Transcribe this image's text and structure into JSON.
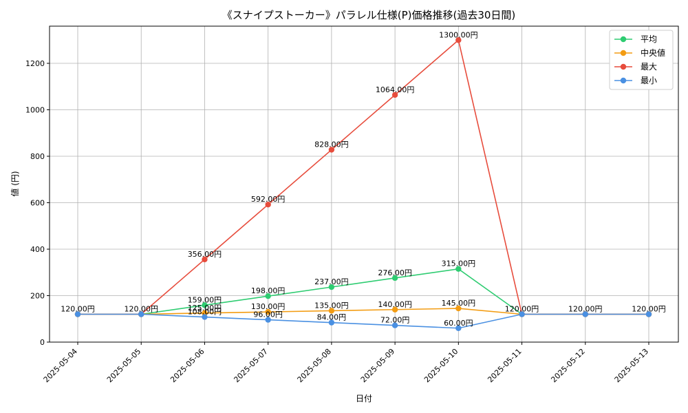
{
  "chart_data": {
    "type": "line",
    "title": "《スナイプストーカー》パラレル仕様(P)価格推移(過去30日間)",
    "xlabel": "日付",
    "ylabel": "値 (円)",
    "categories": [
      "2025-05-04",
      "2025-05-05",
      "2025-05-06",
      "2025-05-07",
      "2025-05-08",
      "2025-05-09",
      "2025-05-10",
      "2025-05-11",
      "2025-05-12",
      "2025-05-13"
    ],
    "ylim": [
      0,
      1360
    ],
    "yticks": [
      0,
      200,
      400,
      600,
      800,
      1000,
      1200
    ],
    "grid": true,
    "legend_position": "top-right",
    "series": [
      {
        "name": "平均",
        "color": "#2ecc71",
        "values": [
          120,
          120,
          159,
          198,
          237,
          276,
          315,
          120,
          120,
          120
        ]
      },
      {
        "name": "中央値",
        "color": "#f39c12",
        "values": [
          120,
          120,
          125,
          130,
          135,
          140,
          145,
          120,
          120,
          120
        ]
      },
      {
        "name": "最大",
        "color": "#e74c3c",
        "values": [
          120,
          120,
          356,
          592,
          828,
          1064,
          1300,
          120,
          120,
          120
        ]
      },
      {
        "name": "最小",
        "color": "#4a90e2",
        "values": [
          120,
          120,
          108,
          96,
          84,
          72,
          60,
          120,
          120,
          120
        ]
      }
    ],
    "data_labels": [
      {
        "series": 0,
        "index": 0,
        "text": "120.00円"
      },
      {
        "series": 0,
        "index": 1,
        "text": "120.00円"
      },
      {
        "series": 0,
        "index": 2,
        "text": "159.00円"
      },
      {
        "series": 0,
        "index": 3,
        "text": "198.00円"
      },
      {
        "series": 0,
        "index": 4,
        "text": "237.00円"
      },
      {
        "series": 0,
        "index": 5,
        "text": "276.00円"
      },
      {
        "series": 0,
        "index": 6,
        "text": "315.00円"
      },
      {
        "series": 0,
        "index": 7,
        "text": "120.00円"
      },
      {
        "series": 0,
        "index": 8,
        "text": "120.00円"
      },
      {
        "series": 0,
        "index": 9,
        "text": "120.00円"
      },
      {
        "series": 1,
        "index": 2,
        "text": "125.00円"
      },
      {
        "series": 1,
        "index": 3,
        "text": "130.00円"
      },
      {
        "series": 1,
        "index": 4,
        "text": "135.00円"
      },
      {
        "series": 1,
        "index": 5,
        "text": "140.00円"
      },
      {
        "series": 1,
        "index": 6,
        "text": "145.00円"
      },
      {
        "series": 2,
        "index": 2,
        "text": "356.00円"
      },
      {
        "series": 2,
        "index": 3,
        "text": "592.00円"
      },
      {
        "series": 2,
        "index": 4,
        "text": "828.00円"
      },
      {
        "series": 2,
        "index": 5,
        "text": "1064.00円"
      },
      {
        "series": 2,
        "index": 6,
        "text": "1300.00円"
      },
      {
        "series": 3,
        "index": 2,
        "text": "108.00円"
      },
      {
        "series": 3,
        "index": 3,
        "text": "96.00円"
      },
      {
        "series": 3,
        "index": 4,
        "text": "84.00円"
      },
      {
        "series": 3,
        "index": 5,
        "text": "72.00円"
      },
      {
        "series": 3,
        "index": 6,
        "text": "60.00円"
      }
    ]
  }
}
